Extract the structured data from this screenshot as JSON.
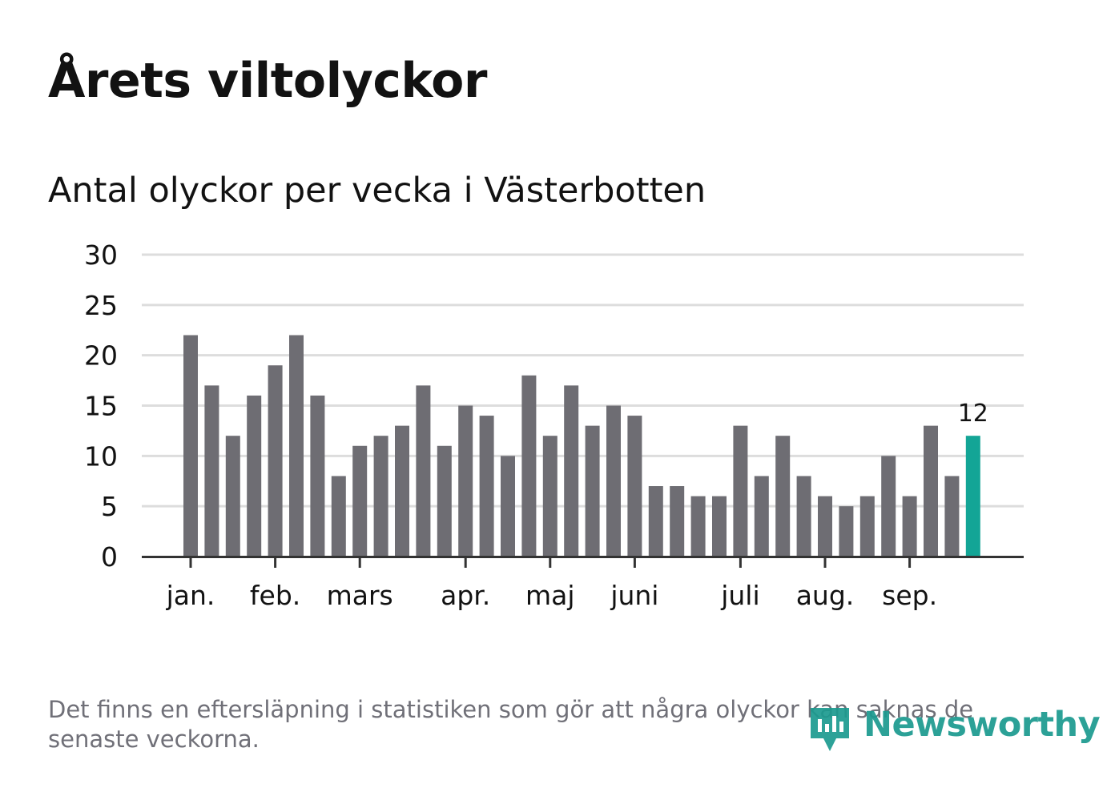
{
  "title": "Årets viltolyckor",
  "subtitle": "Antal olyckor per vecka i Västerbotten",
  "footnote": "Det finns en eftersläpning i statistiken som gör att några olyckor kan saknas de senaste veckorna.",
  "logo": {
    "text": "Newsworthy",
    "icon": "newsworthy-logo-icon"
  },
  "colors": {
    "bar": "#6e6d73",
    "highlight": "#13a596",
    "grid": "#dddddd",
    "axis": "#333333",
    "text": "#121212",
    "footnote": "#707078",
    "logo": "#1b9a8f"
  },
  "chart_data": {
    "type": "bar",
    "title": "Antal olyckor per vecka i Västerbotten",
    "xlabel": "",
    "ylabel": "",
    "ylim": [
      0,
      30
    ],
    "yticks": [
      0,
      5,
      10,
      15,
      20,
      25,
      30
    ],
    "grid": true,
    "values": [
      22,
      17,
      12,
      16,
      19,
      22,
      16,
      8,
      11,
      12,
      13,
      17,
      11,
      15,
      14,
      10,
      18,
      12,
      17,
      13,
      15,
      14,
      7,
      7,
      6,
      6,
      13,
      8,
      12,
      8,
      6,
      5,
      6,
      10,
      6,
      13,
      8,
      12
    ],
    "highlight_index": 37,
    "highlight_label": "12",
    "month_labels": [
      {
        "label": "jan.",
        "bar_index": 0
      },
      {
        "label": "feb.",
        "bar_index": 4
      },
      {
        "label": "mars",
        "bar_index": 8
      },
      {
        "label": "apr.",
        "bar_index": 13
      },
      {
        "label": "maj",
        "bar_index": 17
      },
      {
        "label": "juni",
        "bar_index": 21
      },
      {
        "label": "juli",
        "bar_index": 26
      },
      {
        "label": "aug.",
        "bar_index": 30
      },
      {
        "label": "sep.",
        "bar_index": 34
      }
    ]
  }
}
